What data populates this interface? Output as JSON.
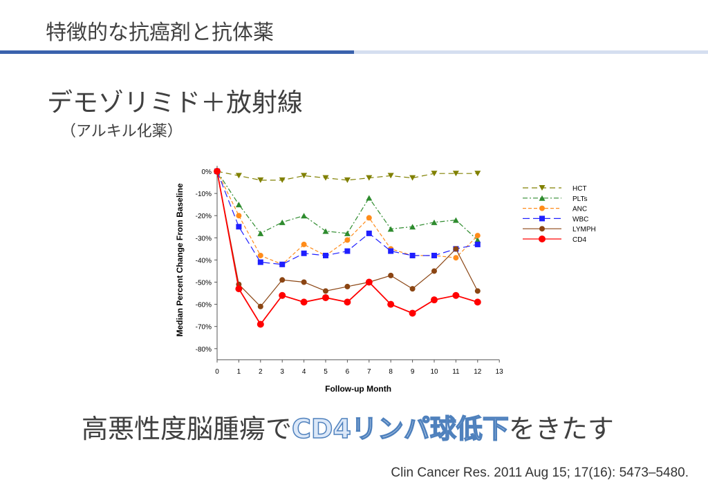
{
  "slide": {
    "title": "特徴的な抗癌剤と抗体薬",
    "heading": "デモゾリミド＋放射線",
    "subheading": "（アルキル化薬）",
    "conclusion_pre": "高悪性度脳腫瘍で",
    "conclusion_highlight": "CD4リンパ球低下",
    "conclusion_post": "をきたす",
    "citation": "Clin Cancer Res. 2011 Aug 15; 17(16): 5473–5480.",
    "accent_color": "#3a62ad"
  },
  "chart_data": {
    "type": "line",
    "xlabel": "Follow-up Month",
    "ylabel": "Median Percent Change From Baseline",
    "xlim": [
      0,
      13
    ],
    "ylim": [
      -85,
      0
    ],
    "x_ticks": [
      "0",
      "1",
      "2",
      "3",
      "4",
      "5",
      "6",
      "7",
      "8",
      "9",
      "10",
      "11",
      "12",
      "13"
    ],
    "y_ticks": [
      "0%",
      "-10%",
      "-20%",
      "-30%",
      "-40%",
      "-50%",
      "-60%",
      "-70%",
      "-80%"
    ],
    "y_tick_values": [
      0,
      -10,
      -20,
      -30,
      -40,
      -50,
      -60,
      -70,
      -80
    ],
    "legend_position": "right",
    "x": [
      0,
      1,
      2,
      3,
      4,
      5,
      6,
      7,
      8,
      9,
      10,
      11,
      12
    ],
    "series": [
      {
        "name": "HCT",
        "color": "#808000",
        "marker": "triangle-down",
        "dash": "8,5",
        "values": [
          0,
          -2,
          -4,
          -4,
          -2,
          -3,
          -4,
          -3,
          -2,
          -3,
          -1,
          -1,
          -1
        ]
      },
      {
        "name": "PLTs",
        "color": "#2e8b2e",
        "marker": "triangle-up",
        "dash": "7,3,2,3",
        "values": [
          0,
          -15,
          -28,
          -23,
          -20,
          -27,
          -28,
          -12,
          -26,
          -25,
          -23,
          -22,
          -31
        ]
      },
      {
        "name": "ANC",
        "color": "#ff8c1a",
        "marker": "circle",
        "dash": "5,3",
        "values": [
          0,
          -20,
          -38,
          -42,
          -33,
          -38,
          -31,
          -21,
          -35,
          -38,
          -38,
          -39,
          -29
        ]
      },
      {
        "name": "WBC",
        "color": "#1f1fff",
        "marker": "square",
        "dash": "10,5",
        "values": [
          0,
          -25,
          -41,
          -42,
          -37,
          -38,
          -36,
          -28,
          -36,
          -38,
          -38,
          -35,
          -33
        ]
      },
      {
        "name": "LYMPH",
        "color": "#8b4513",
        "marker": "circle",
        "dash": "",
        "values": [
          0,
          -51,
          -61,
          -49,
          -50,
          -54,
          -52,
          -50,
          -47,
          -53,
          -45,
          -35,
          -54
        ]
      },
      {
        "name": "CD4",
        "color": "#ff0000",
        "marker": "circle-large",
        "dash": "",
        "values": [
          0,
          -53,
          -69,
          -56,
          -59,
          -57,
          -59,
          -50,
          -60,
          -64,
          -58,
          -56,
          -59
        ]
      }
    ]
  }
}
